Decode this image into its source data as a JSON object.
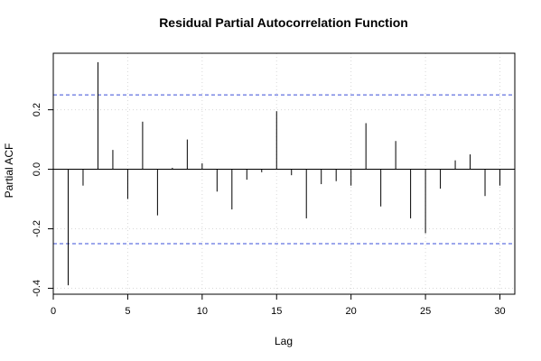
{
  "chart_data": {
    "type": "bar",
    "title": "Residual Partial Autocorrelation Function",
    "xlabel": "Lag",
    "ylabel": "Partial ACF",
    "xlim": [
      0,
      31
    ],
    "ylim": [
      -0.42,
      0.39
    ],
    "x_ticks": [
      0,
      5,
      10,
      15,
      20,
      25,
      30
    ],
    "x_tick_labels": [
      "0",
      "5",
      "10",
      "15",
      "20",
      "25",
      "30"
    ],
    "y_ticks": [
      -0.4,
      -0.2,
      0.0,
      0.2
    ],
    "y_tick_labels": [
      "-0.4",
      "-0.2",
      "0.0",
      "0.2"
    ],
    "grid": true,
    "confidence_band": 0.25,
    "confidence_color": "#3b4fd8",
    "bar_color": "#000000",
    "lags": [
      1,
      2,
      3,
      4,
      5,
      6,
      7,
      8,
      9,
      10,
      11,
      12,
      13,
      14,
      15,
      16,
      17,
      18,
      19,
      20,
      21,
      22,
      23,
      24,
      25,
      26,
      27,
      28,
      29,
      30
    ],
    "values": [
      -0.39,
      -0.055,
      0.36,
      0.065,
      -0.1,
      0.16,
      -0.155,
      0.005,
      0.1,
      0.02,
      -0.075,
      -0.135,
      -0.035,
      -0.01,
      0.195,
      -0.02,
      -0.165,
      -0.05,
      -0.04,
      -0.055,
      0.155,
      -0.125,
      0.095,
      -0.165,
      -0.215,
      -0.065,
      0.03,
      0.05,
      -0.09,
      -0.055
    ]
  }
}
